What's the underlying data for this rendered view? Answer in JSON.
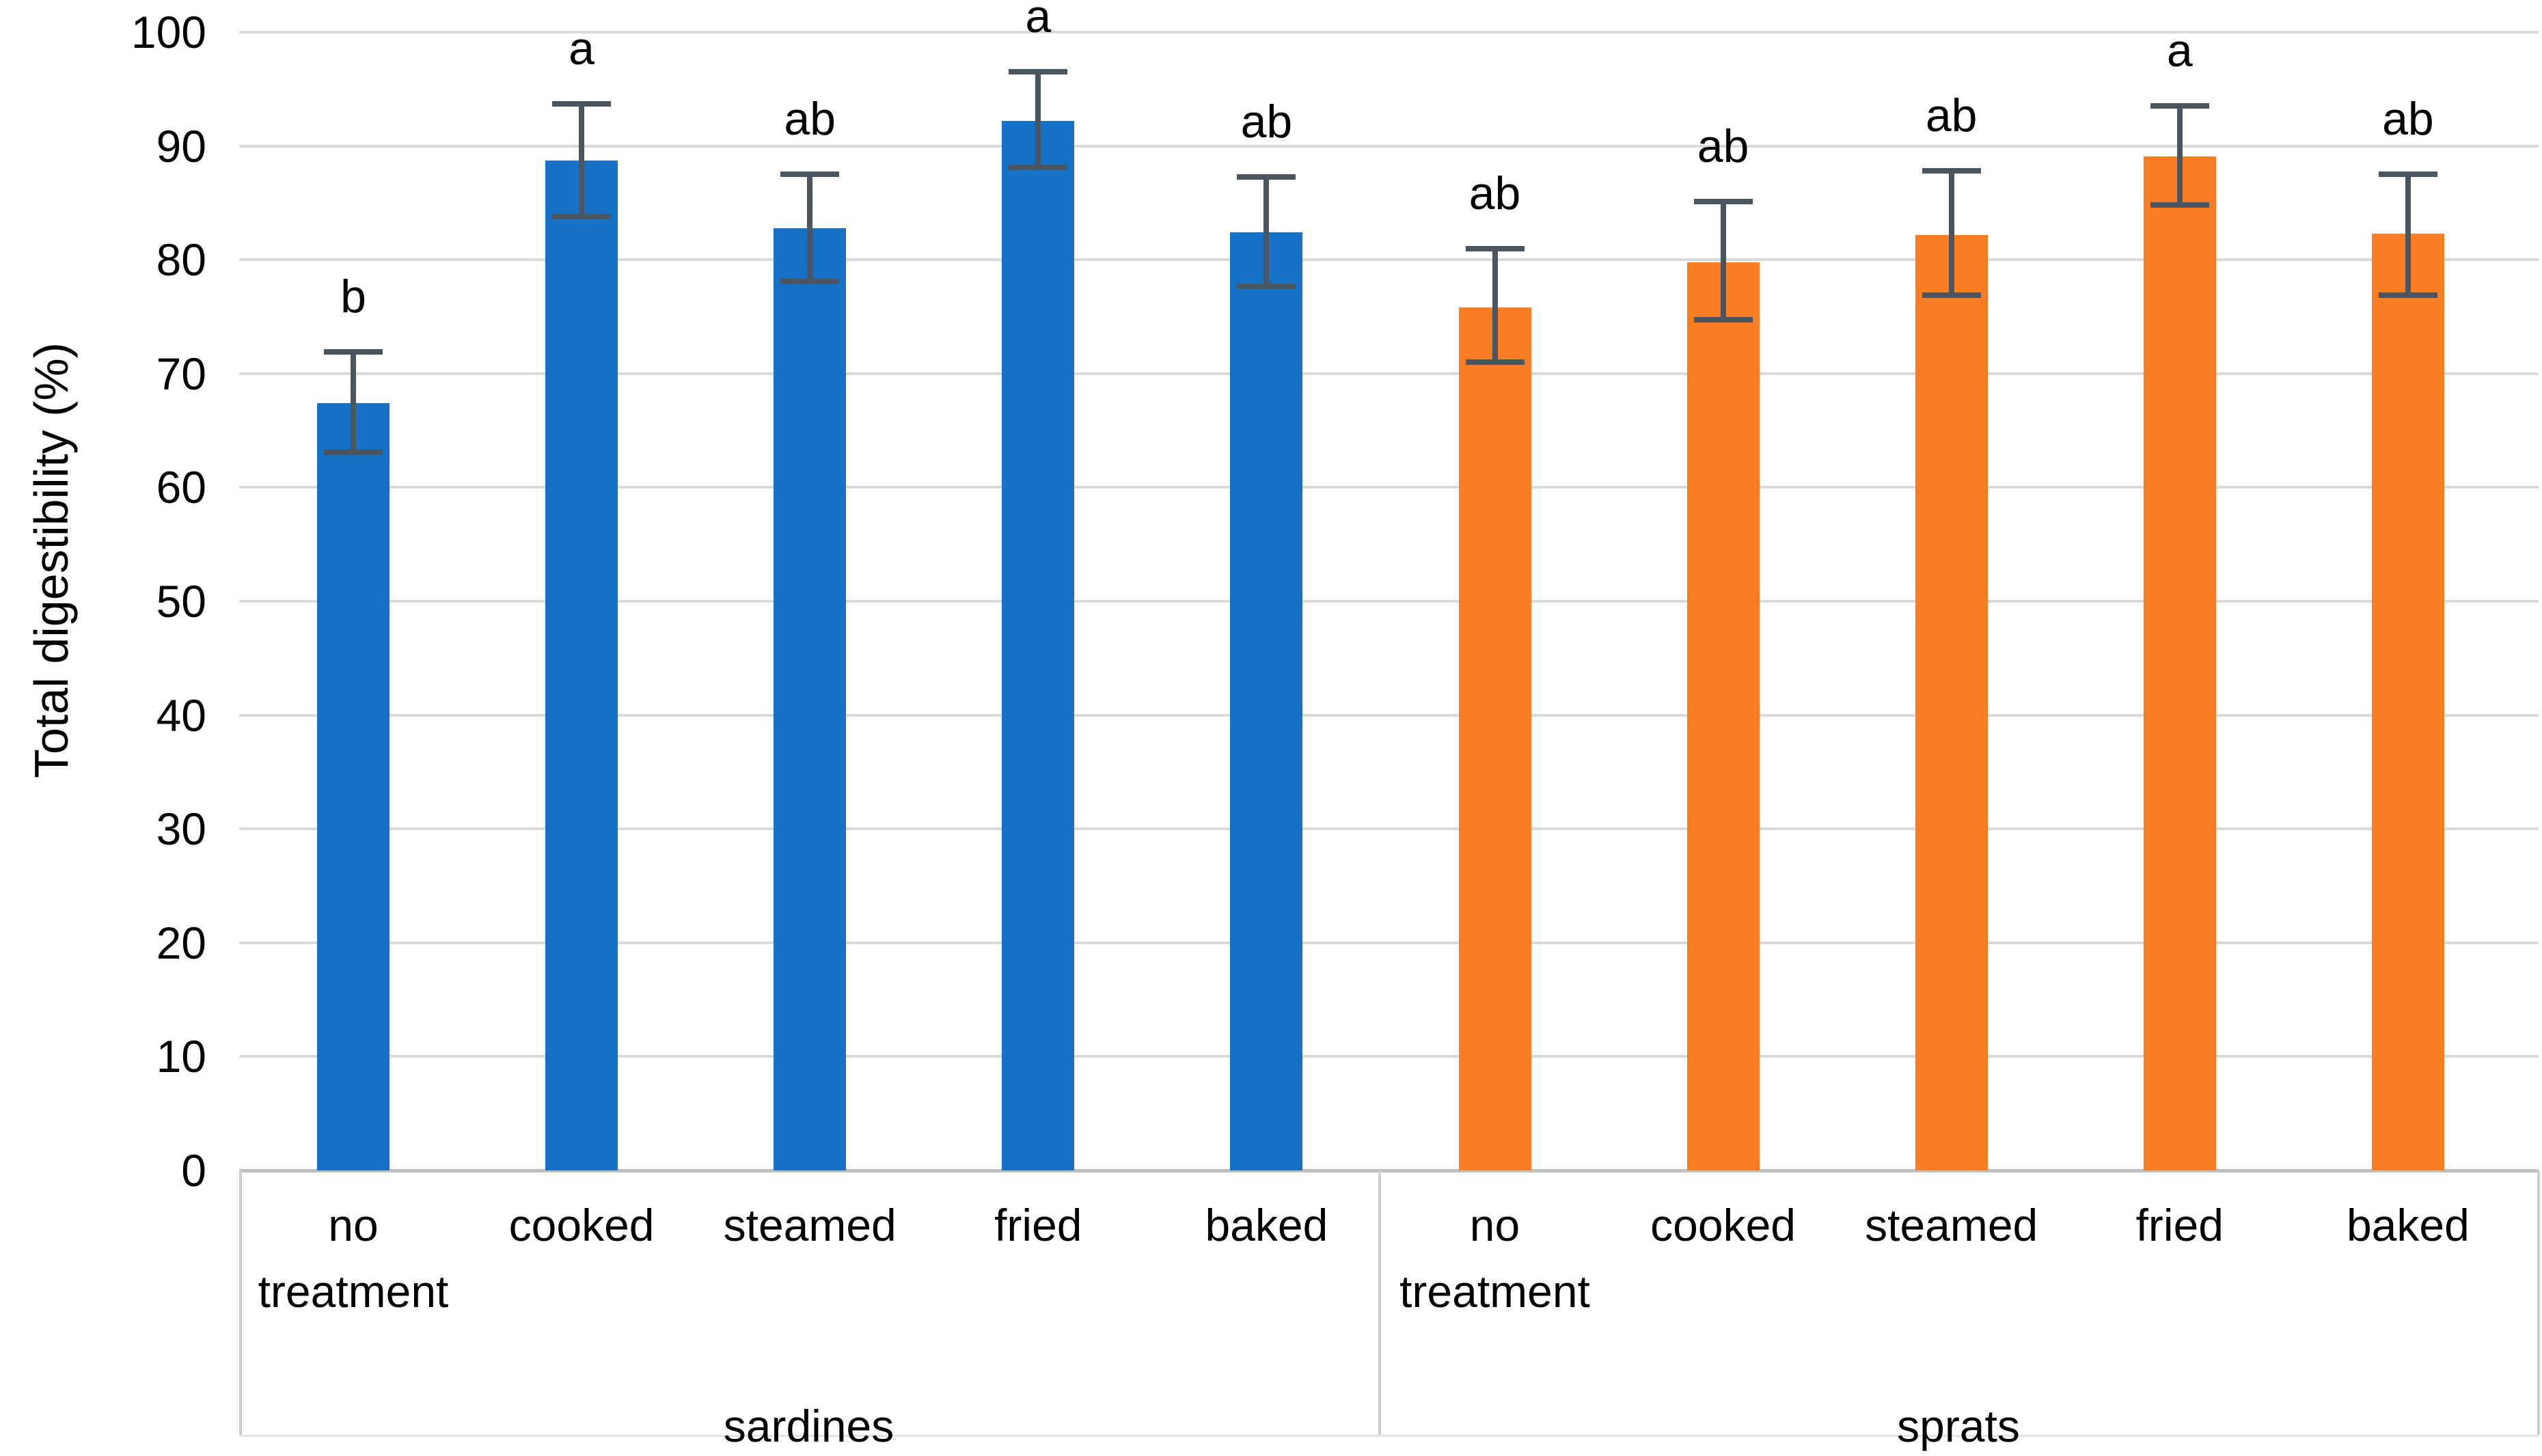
{
  "chart_data": {
    "type": "bar",
    "title": "",
    "xlabel": "",
    "ylabel": "Total digestibility (%)",
    "ylim": [
      0,
      100
    ],
    "ytick_step": 10,
    "yticks": [
      0,
      10,
      20,
      30,
      40,
      50,
      60,
      70,
      80,
      90,
      100
    ],
    "grid": true,
    "legend_position": "none",
    "error_bars": true,
    "groups": [
      {
        "label": "sardines",
        "color": "#1572C6",
        "bars": [
          {
            "category": "no treatment",
            "value": 67.4,
            "err_low": 63.1,
            "err_high": 71.9,
            "sig": "b"
          },
          {
            "category": "cooked",
            "value": 88.7,
            "err_low": 83.8,
            "err_high": 93.7,
            "sig": "a"
          },
          {
            "category": "steamed",
            "value": 82.8,
            "err_low": 78.1,
            "err_high": 87.5,
            "sig": "ab"
          },
          {
            "category": "fried",
            "value": 92.2,
            "err_low": 88.1,
            "err_high": 96.5,
            "sig": "a"
          },
          {
            "category": "baked",
            "value": 82.4,
            "err_low": 77.7,
            "err_high": 87.3,
            "sig": "ab"
          }
        ]
      },
      {
        "label": "sprats",
        "color": "#F97E23",
        "bars": [
          {
            "category": "no treatment",
            "value": 75.8,
            "err_low": 71.0,
            "err_high": 81.0,
            "sig": "ab"
          },
          {
            "category": "cooked",
            "value": 79.8,
            "err_low": 74.7,
            "err_high": 85.1,
            "sig": "ab"
          },
          {
            "category": "steamed",
            "value": 82.2,
            "err_low": 76.9,
            "err_high": 87.8,
            "sig": "ab"
          },
          {
            "category": "fried",
            "value": 89.1,
            "err_low": 84.8,
            "err_high": 93.5,
            "sig": "a"
          },
          {
            "category": "baked",
            "value": 82.3,
            "err_low": 76.9,
            "err_high": 87.5,
            "sig": "ab"
          }
        ]
      }
    ],
    "colors": {
      "series_sardines": "#1572C6",
      "series_sprats": "#F97E23",
      "gridline": "#D9D9D9",
      "axis_line": "#BFBFBF",
      "error_bar": "#4A5560",
      "text": "#000000",
      "background": "#FFFFFF"
    }
  }
}
